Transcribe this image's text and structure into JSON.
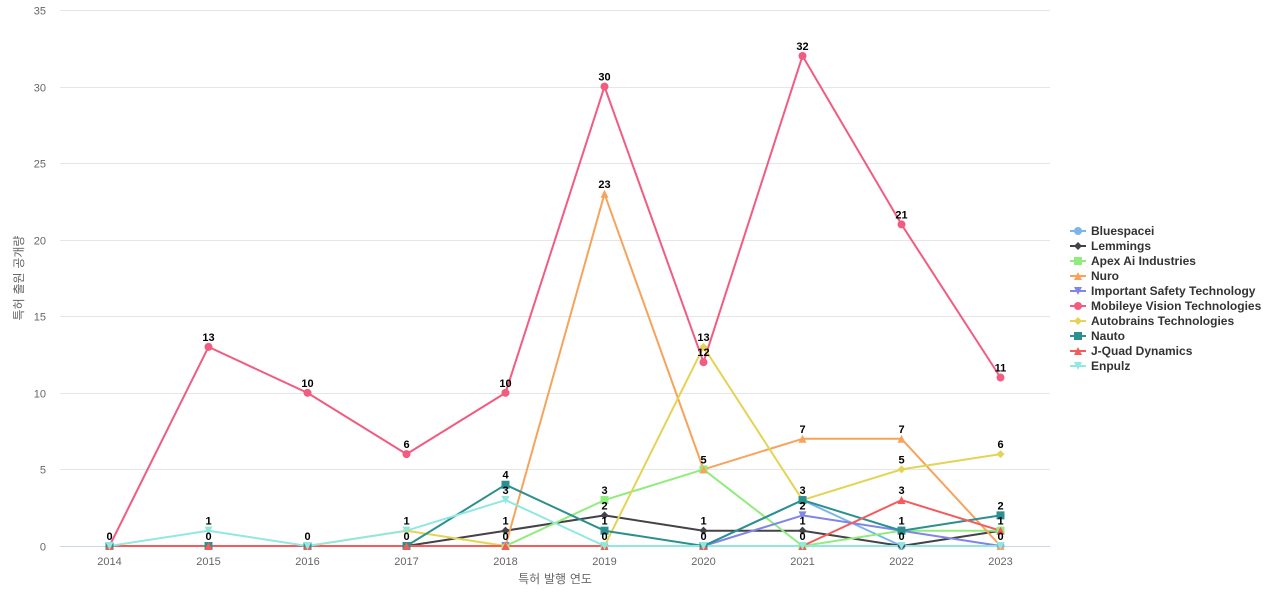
{
  "chart_data": {
    "type": "line",
    "title": "",
    "xlabel": "특허 발행 연도",
    "ylabel": "특허 출원 공개량",
    "x": [
      "2014",
      "2015",
      "2016",
      "2017",
      "2018",
      "2019",
      "2020",
      "2021",
      "2022",
      "2023"
    ],
    "ylim": [
      0,
      35
    ],
    "yticks": [
      0,
      5,
      10,
      15,
      20,
      25,
      30,
      35
    ],
    "grid": true,
    "legend_position": "right",
    "series": [
      {
        "name": "Bluespacei",
        "color": "#7cb5ec",
        "marker": "circle",
        "values": [
          0,
          0,
          0,
          0,
          0,
          0,
          0,
          3,
          0,
          0
        ]
      },
      {
        "name": "Lemmings",
        "color": "#434348",
        "marker": "diamond",
        "values": [
          0,
          0,
          0,
          0,
          1,
          2,
          1,
          1,
          0,
          1
        ]
      },
      {
        "name": "Apex Ai Industries",
        "color": "#90ed7d",
        "marker": "square",
        "values": [
          0,
          0,
          0,
          0,
          0,
          3,
          5,
          0,
          1,
          1
        ]
      },
      {
        "name": "Nuro",
        "color": "#f7a35c",
        "marker": "triangle",
        "values": [
          0,
          0,
          0,
          0,
          0,
          23,
          5,
          7,
          7,
          0
        ]
      },
      {
        "name": "Important Safety Technology",
        "color": "#8085e9",
        "marker": "triangle-down",
        "values": [
          0,
          0,
          0,
          0,
          0,
          0,
          0,
          2,
          1,
          0
        ]
      },
      {
        "name": "Mobileye Vision Technologies",
        "color": "#f15c80",
        "marker": "circle",
        "values": [
          0,
          13,
          10,
          6,
          10,
          30,
          12,
          32,
          21,
          11
        ]
      },
      {
        "name": "Autobrains Technologies",
        "color": "#e4d354",
        "marker": "diamond",
        "values": [
          0,
          0,
          0,
          1,
          0,
          0,
          13,
          3,
          5,
          6
        ]
      },
      {
        "name": "Nauto",
        "color": "#2b908f",
        "marker": "square",
        "values": [
          0,
          0,
          0,
          0,
          4,
          1,
          0,
          3,
          1,
          2
        ]
      },
      {
        "name": "J-Quad Dynamics",
        "color": "#f45b5b",
        "marker": "triangle",
        "values": [
          0,
          0,
          0,
          0,
          0,
          0,
          0,
          0,
          3,
          1
        ]
      },
      {
        "name": "Enpulz",
        "color": "#91e8e1",
        "marker": "triangle-down",
        "values": [
          0,
          1,
          0,
          1,
          3,
          0,
          0,
          0,
          0,
          0
        ]
      }
    ],
    "data_labels": [
      {
        "x": "2014",
        "value": 0
      },
      {
        "x": "2015",
        "value": 13
      },
      {
        "x": "2015",
        "value": 1
      },
      {
        "x": "2015",
        "value": 0
      },
      {
        "x": "2016",
        "value": 10
      },
      {
        "x": "2016",
        "value": 0
      },
      {
        "x": "2017",
        "value": 6
      },
      {
        "x": "2017",
        "value": 1
      },
      {
        "x": "2017",
        "value": 0
      },
      {
        "x": "2018",
        "value": 10
      },
      {
        "x": "2018",
        "value": 4
      },
      {
        "x": "2018",
        "value": 3
      },
      {
        "x": "2018",
        "value": 1
      },
      {
        "x": "2018",
        "value": 0
      },
      {
        "x": "2019",
        "value": 30
      },
      {
        "x": "2019",
        "value": 23
      },
      {
        "x": "2019",
        "value": 3
      },
      {
        "x": "2019",
        "value": 2
      },
      {
        "x": "2019",
        "value": 1
      },
      {
        "x": "2019",
        "value": 0
      },
      {
        "x": "2020",
        "value": 13
      },
      {
        "x": "2020",
        "value": 12
      },
      {
        "x": "2020",
        "value": 5
      },
      {
        "x": "2020",
        "value": 1
      },
      {
        "x": "2020",
        "value": 0
      },
      {
        "x": "2021",
        "value": 32
      },
      {
        "x": "2021",
        "value": 7
      },
      {
        "x": "2021",
        "value": 3
      },
      {
        "x": "2021",
        "value": 2
      },
      {
        "x": "2021",
        "value": 1
      },
      {
        "x": "2021",
        "value": 0
      },
      {
        "x": "2022",
        "value": 21
      },
      {
        "x": "2022",
        "value": 7
      },
      {
        "x": "2022",
        "value": 5
      },
      {
        "x": "2022",
        "value": 3
      },
      {
        "x": "2022",
        "value": 1
      },
      {
        "x": "2022",
        "value": 0
      },
      {
        "x": "2023",
        "value": 11
      },
      {
        "x": "2023",
        "value": 6
      },
      {
        "x": "2023",
        "value": 2
      },
      {
        "x": "2023",
        "value": 1
      },
      {
        "x": "2023",
        "value": 0
      }
    ]
  }
}
